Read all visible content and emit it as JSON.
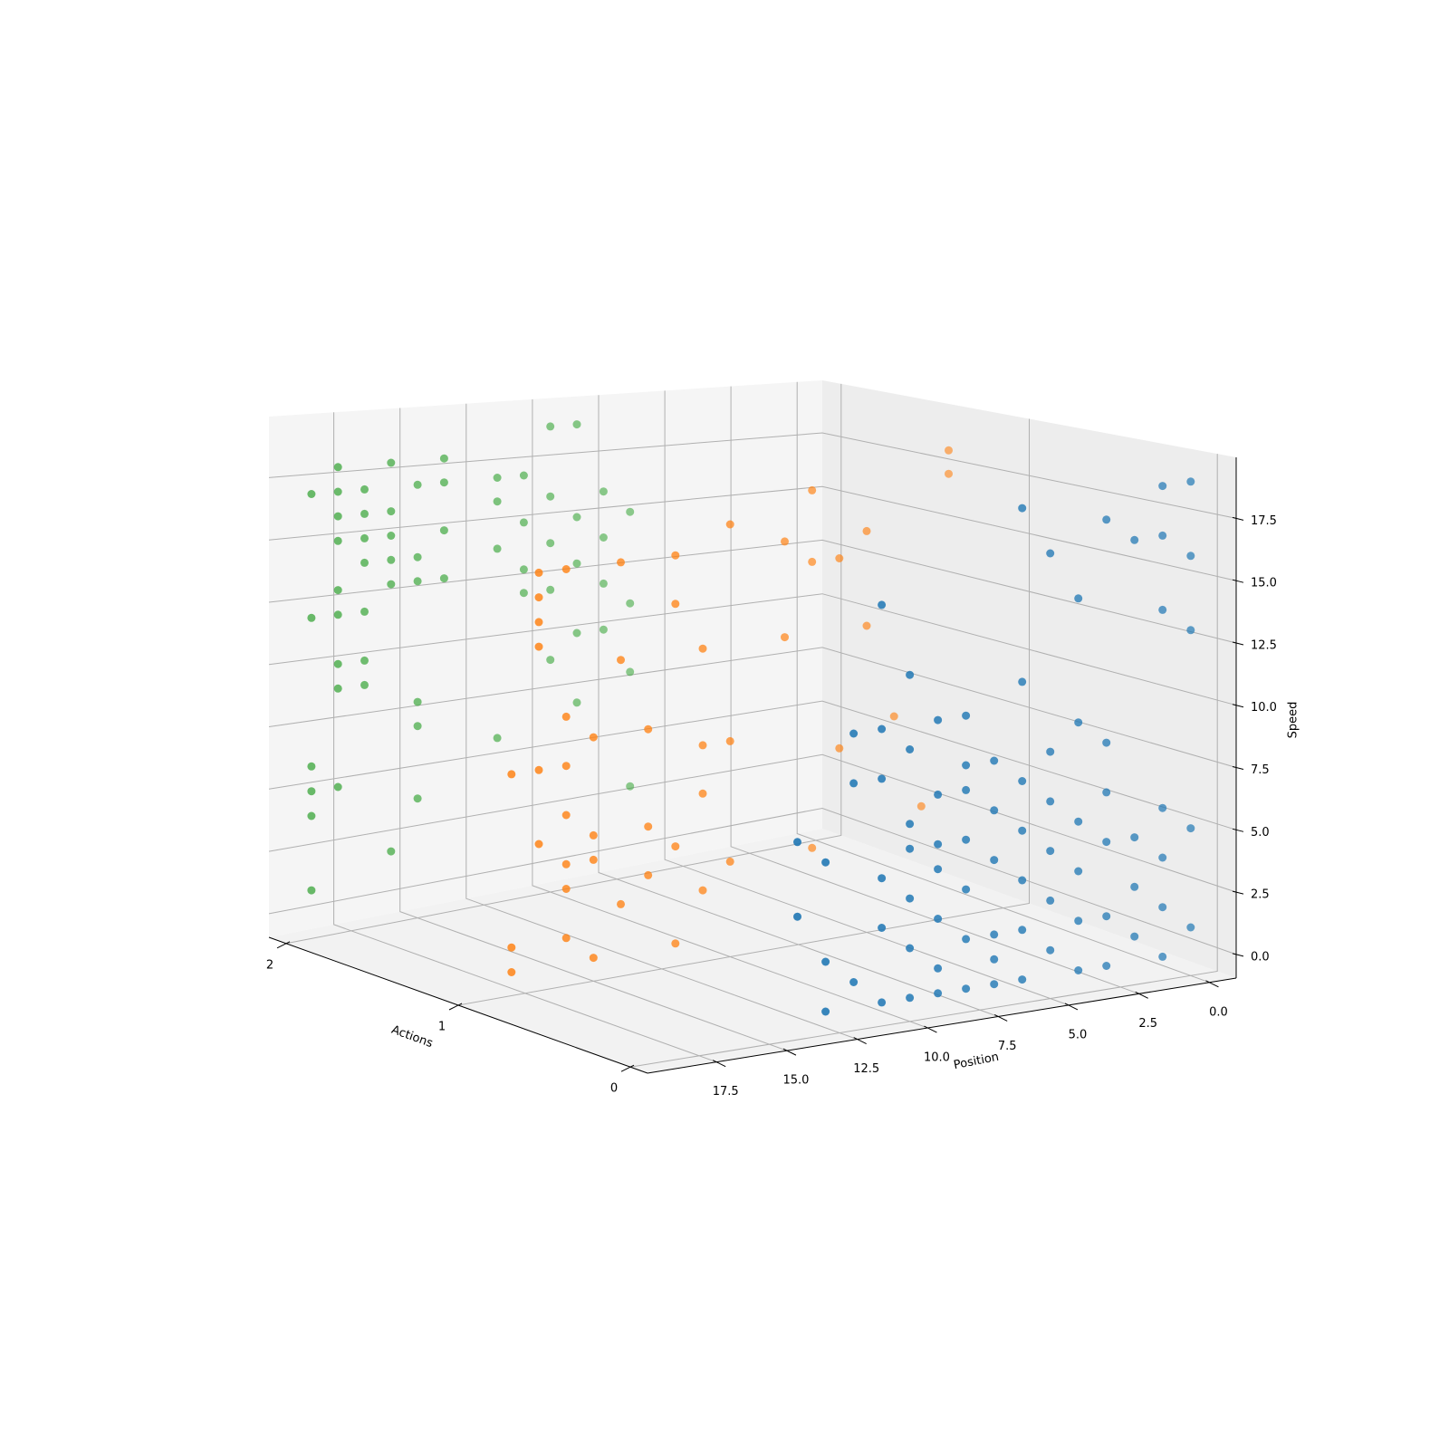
{
  "chart_data": {
    "type": "scatter3d",
    "xlabel": "Actions",
    "ylabel": "Position",
    "zlabel": "Speed",
    "xlim": [
      -0.1,
      2.1
    ],
    "ylim": [
      -0.95,
      19.95
    ],
    "zlim": [
      -0.95,
      19.95
    ],
    "xticks": [
      0,
      1,
      2
    ],
    "yticks": [
      {
        "value": 0,
        "label": "0.0"
      },
      2.5,
      {
        "value": 5,
        "label": "5.0"
      },
      7.5,
      {
        "value": 10,
        "label": "10.0"
      },
      12.5,
      {
        "value": 15,
        "label": "15.0"
      },
      17.5
    ],
    "zticks": [
      {
        "value": 0,
        "label": "0.0"
      },
      2.5,
      {
        "value": 5,
        "label": "5.0"
      },
      7.5,
      {
        "value": 10,
        "label": "10.0"
      },
      12.5,
      {
        "value": 15,
        "label": "15.0"
      },
      17.5
    ],
    "grid": true,
    "series": [
      {
        "color": "#1f77b4",
        "action": 0,
        "position": [
          14,
          14,
          13,
          13,
          13,
          12,
          12,
          12,
          11,
          11,
          11,
          11,
          11,
          11,
          10,
          10,
          10,
          10,
          10,
          10,
          10,
          9,
          9,
          9,
          9,
          9,
          9,
          9,
          8,
          8,
          8,
          8,
          8,
          8,
          8,
          7,
          7,
          7,
          7,
          7,
          7,
          6,
          6,
          6,
          6,
          6,
          6,
          6,
          5,
          5,
          5,
          5,
          5,
          5,
          4,
          4,
          4,
          4,
          4,
          4,
          3,
          3,
          3,
          3,
          3,
          3,
          2,
          2,
          2,
          2,
          1,
          1,
          1,
          1,
          1,
          1,
          1,
          0,
          0,
          0,
          0,
          0
        ],
        "speed": [
          4,
          7,
          0,
          2,
          6,
          1,
          9,
          11,
          0,
          3,
          5,
          9,
          11,
          16,
          0,
          2,
          4,
          6,
          7,
          10,
          13,
          0,
          1,
          3,
          5,
          6,
          8,
          11,
          0,
          2,
          4,
          6,
          8,
          9,
          11,
          0,
          1,
          2,
          5,
          7,
          9,
          0,
          2,
          4,
          6,
          8,
          12,
          19,
          1,
          3,
          5,
          7,
          9,
          17,
          0,
          2,
          4,
          6,
          10,
          15,
          0,
          2,
          5,
          7,
          9,
          18,
          1,
          3,
          5,
          17,
          0,
          2,
          4,
          6,
          14,
          17,
          19,
          1,
          5,
          13,
          16,
          19
        ]
      },
      {
        "color": "#ff7f0e",
        "action": 1,
        "position": [
          18,
          18,
          18,
          17,
          17,
          17,
          17,
          17,
          17,
          16,
          16,
          16,
          16,
          16,
          16,
          16,
          15,
          15,
          15,
          15,
          14,
          14,
          14,
          13,
          13,
          13,
          12,
          12,
          12,
          12,
          11,
          11,
          11,
          11,
          10,
          10,
          10,
          8,
          8,
          7,
          7,
          7,
          6,
          6,
          5,
          5,
          4,
          3,
          2,
          2
        ],
        "speed": [
          0,
          1,
          8,
          5,
          8,
          13,
          14,
          15,
          16,
          1,
          3,
          4,
          6,
          8,
          10,
          16,
          0,
          4,
          5,
          9,
          2,
          12,
          16,
          3,
          5,
          9,
          0,
          4,
          14,
          16,
          2,
          6,
          8,
          12,
          3,
          8,
          17,
          12,
          16,
          3,
          15,
          18,
          7,
          15,
          12,
          16,
          8,
          4,
          18,
          19
        ]
      },
      {
        "color": "#2ca02c",
        "action": 2,
        "position": [
          19,
          19,
          19,
          19,
          19,
          19,
          18,
          18,
          18,
          18,
          18,
          18,
          18,
          18,
          18,
          17,
          17,
          17,
          17,
          17,
          17,
          17,
          16,
          16,
          16,
          16,
          16,
          16,
          15,
          15,
          15,
          15,
          15,
          15,
          14,
          14,
          14,
          14,
          12,
          12,
          12,
          12,
          11,
          11,
          11,
          11,
          10,
          10,
          10,
          10,
          10,
          9,
          9,
          9,
          9,
          9,
          8,
          8,
          8,
          8,
          7,
          7,
          7,
          7
        ],
        "speed": [
          1,
          4,
          5,
          6,
          12,
          17,
          5,
          9,
          10,
          12,
          13,
          15,
          16,
          17,
          18,
          9,
          10,
          12,
          14,
          15,
          16,
          17,
          2,
          13,
          14,
          15,
          16,
          18,
          4,
          7,
          8,
          13,
          14,
          17,
          13,
          15,
          17,
          18,
          6,
          14,
          16,
          17,
          12,
          13,
          15,
          17,
          9,
          12,
          14,
          16,
          19,
          7,
          10,
          13,
          15,
          19,
          10,
          12,
          14,
          16,
          3,
          8,
          11,
          15
        ]
      }
    ]
  }
}
